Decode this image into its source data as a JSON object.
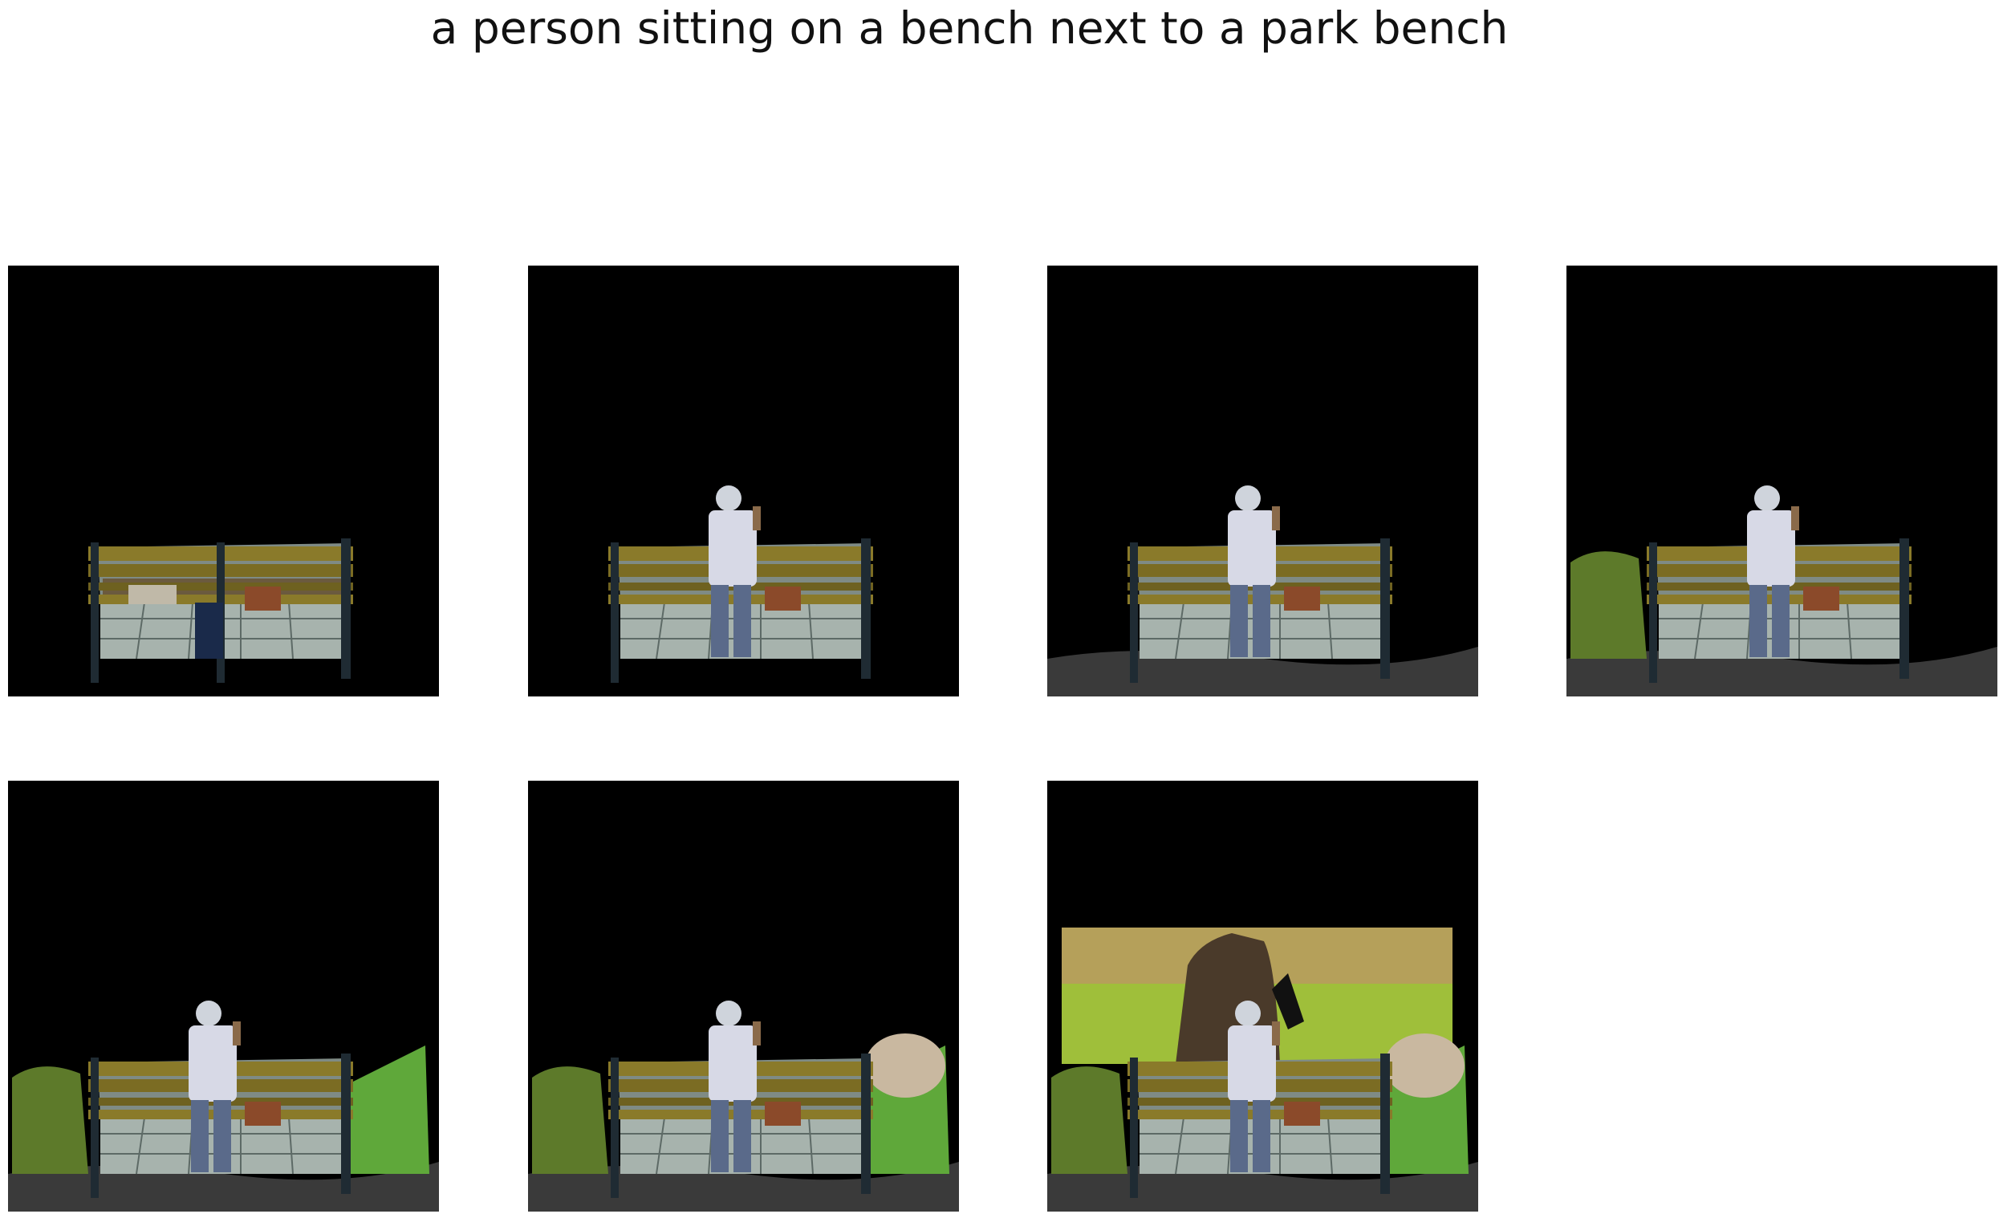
{
  "figure": {
    "title": "a person sitting on a bench next to a park bench",
    "panels": [
      {
        "step": 1,
        "layers": [
          "bench"
        ]
      },
      {
        "step": 2,
        "layers": [
          "bench",
          "person"
        ]
      },
      {
        "step": 3,
        "layers": [
          "bench",
          "person",
          "ground"
        ]
      },
      {
        "step": 4,
        "layers": [
          "bench",
          "person",
          "ground",
          "hedge-left"
        ]
      },
      {
        "step": 5,
        "layers": [
          "bench",
          "person",
          "ground",
          "hedge-left",
          "grass-right"
        ]
      },
      {
        "step": 6,
        "layers": [
          "bench",
          "person",
          "ground",
          "hedge-left",
          "grass-right",
          "bush-right"
        ]
      },
      {
        "step": 7,
        "layers": [
          "bench",
          "person",
          "ground",
          "hedge-left",
          "grass-right",
          "bush-right",
          "tree-background"
        ]
      }
    ]
  }
}
